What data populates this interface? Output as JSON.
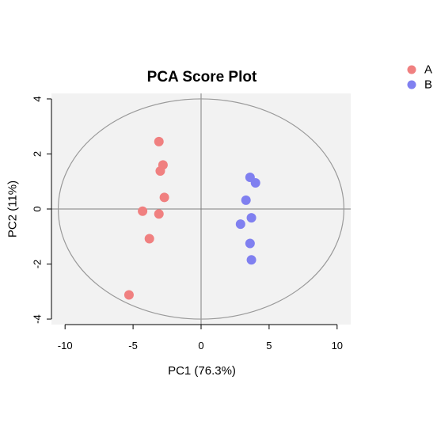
{
  "chart_data": {
    "type": "scatter",
    "title": "PCA Score Plot",
    "xlabel": "PC1 (76.3%)",
    "ylabel": "PC2 (11%)",
    "xlim": [
      -11,
      11
    ],
    "ylim": [
      -4.2,
      4.2
    ],
    "xticks": [
      -10,
      -5,
      0,
      5,
      10
    ],
    "yticks": [
      -4,
      -2,
      0,
      2,
      4
    ],
    "grid": false,
    "legend_position": "top-right",
    "background_color": "#f2f2f2",
    "reference_lines": {
      "x": 0,
      "y": 0
    },
    "confidence_ellipse": {
      "center": [
        0,
        0
      ],
      "rx": 10.5,
      "ry": 4.0
    },
    "series": [
      {
        "name": "A",
        "color": "#f08080",
        "points": [
          [
            -3.1,
            2.45
          ],
          [
            -2.8,
            1.6
          ],
          [
            -3.0,
            1.38
          ],
          [
            -2.7,
            0.42
          ],
          [
            -4.3,
            -0.08
          ],
          [
            -3.1,
            -0.18
          ],
          [
            -3.8,
            -1.08
          ],
          [
            -5.3,
            -3.12
          ]
        ]
      },
      {
        "name": "B",
        "color": "#8080f0",
        "points": [
          [
            3.6,
            1.15
          ],
          [
            4.0,
            0.95
          ],
          [
            3.3,
            0.32
          ],
          [
            3.7,
            -0.32
          ],
          [
            2.9,
            -0.55
          ],
          [
            3.6,
            -1.25
          ],
          [
            3.7,
            -1.85
          ]
        ]
      }
    ]
  }
}
